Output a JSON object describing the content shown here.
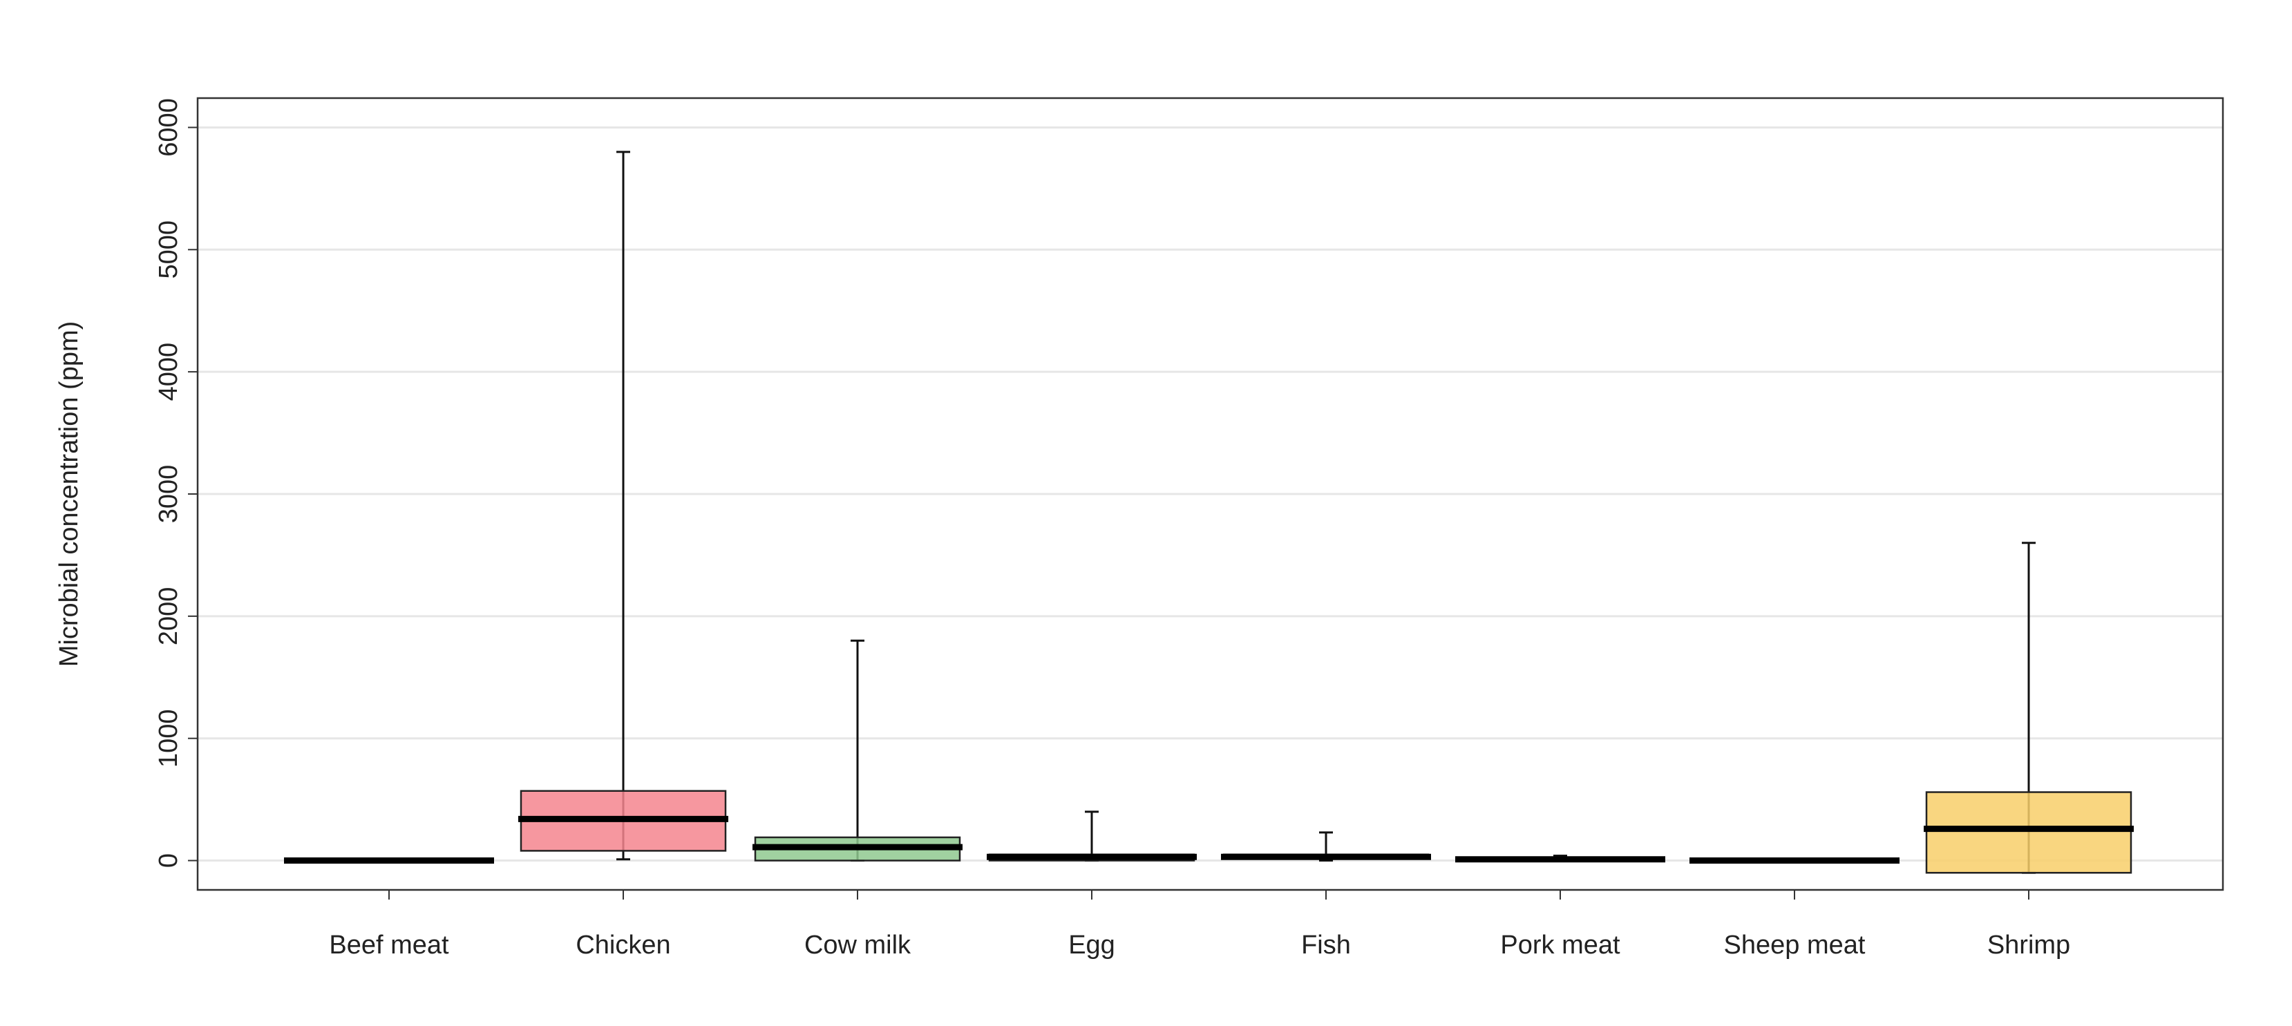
{
  "chart_data": {
    "type": "box",
    "ylabel": "Microbial concentration (ppm)",
    "categories": [
      "Beef meat",
      "Chicken",
      "Cow milk",
      "Egg",
      "Fish",
      "Pork meat",
      "Sheep meat",
      "Shrimp"
    ],
    "boxes": [
      {
        "min": 0,
        "q1": 0,
        "median": 0,
        "q3": 5,
        "max": 10
      },
      {
        "min": 10,
        "q1": 80,
        "median": 340,
        "q3": 570,
        "max": 5800
      },
      {
        "min": 0,
        "q1": 0,
        "median": 110,
        "q3": 190,
        "max": 1800
      },
      {
        "min": 0,
        "q1": 0,
        "median": 30,
        "q3": 50,
        "max": 400
      },
      {
        "min": 0,
        "q1": 20,
        "median": 30,
        "q3": 50,
        "max": 230
      },
      {
        "min": 0,
        "q1": 0,
        "median": 10,
        "q3": 20,
        "max": 40
      },
      {
        "min": 0,
        "q1": 0,
        "median": 0,
        "q3": 5,
        "max": 10
      },
      {
        "min": -100,
        "q1": -100,
        "median": 260,
        "q3": 560,
        "max": 2600
      }
    ],
    "colors": [
      "#b0b0b0",
      "#f4858e",
      "#8fc98f",
      "#c8c8c8",
      "#b8c4d0",
      "#c0c0c0",
      "#c0c0c0",
      "#f8cf6a"
    ],
    "ylim": [
      -240,
      6240
    ],
    "yticks": [
      0,
      1000,
      2000,
      3000,
      4000,
      5000,
      6000
    ],
    "grid": true
  }
}
